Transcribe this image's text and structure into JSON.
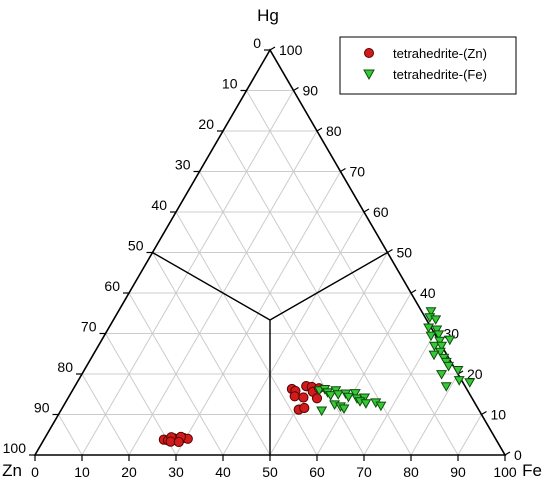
{
  "chart_data": {
    "type": "scatter",
    "subtype": "ternary",
    "apex_labels": {
      "top": "Hg",
      "left": "Zn",
      "right": "Fe"
    },
    "ticks": {
      "bottom": [
        "0",
        "10",
        "20",
        "30",
        "40",
        "50",
        "60",
        "70",
        "80",
        "90",
        "100"
      ],
      "left": [
        "0",
        "10",
        "20",
        "30",
        "40",
        "50",
        "60",
        "70",
        "80",
        "90",
        "100"
      ],
      "right": [
        "0",
        "10",
        "20",
        "30",
        "40",
        "50",
        "60",
        "70",
        "80",
        "90",
        "100"
      ]
    },
    "grid": true,
    "legend": {
      "position": "top-right"
    },
    "colors": {
      "zn_fill": "#d01c1c",
      "fe_fill": "#37c837",
      "grid": "#cccccc"
    },
    "field_boundaries": "50 % lines meeting at the centroid",
    "series": [
      {
        "name": "tetrahedrite-(Zn)",
        "marker": "circle",
        "color": "#d01c1c",
        "points_fe_hg": [
          [
            25.5,
            3.8
          ],
          [
            26.5,
            3.6
          ],
          [
            27.5,
            4.1
          ],
          [
            28.5,
            3.7
          ],
          [
            29.5,
            4.2
          ],
          [
            30.5,
            4.0
          ],
          [
            26.8,
            4.4
          ],
          [
            28.8,
            4.5
          ],
          [
            27.2,
            3.3
          ],
          [
            29.0,
            3.2
          ],
          [
            46.5,
            16.3
          ],
          [
            47.5,
            15.8
          ],
          [
            48.0,
            14.5
          ],
          [
            49.2,
            17.0
          ],
          [
            50.5,
            16.8
          ],
          [
            51.3,
            15.6
          ],
          [
            52.2,
            16.5
          ],
          [
            50.0,
            14.2
          ],
          [
            53.0,
            14.0
          ],
          [
            50.5,
            11.2
          ],
          [
            51.5,
            11.6
          ]
        ]
      },
      {
        "name": "tetrahedrite-(Fe)",
        "marker": "triangle-down",
        "color": "#37c837",
        "points_fe_hg": [
          [
            52.5,
            16.0
          ],
          [
            53.5,
            16.3
          ],
          [
            54.5,
            15.5
          ],
          [
            56.0,
            16.0
          ],
          [
            55.5,
            14.8
          ],
          [
            57.0,
            15.0
          ],
          [
            58.5,
            15.2
          ],
          [
            59.5,
            14.4
          ],
          [
            60.5,
            15.3
          ],
          [
            61.5,
            14.0
          ],
          [
            63.0,
            14.2
          ],
          [
            62.5,
            13.3
          ],
          [
            64.0,
            12.8
          ],
          [
            66.0,
            13.0
          ],
          [
            67.5,
            12.2
          ],
          [
            57.5,
            12.5
          ],
          [
            59.0,
            12.0
          ],
          [
            60.0,
            11.5
          ],
          [
            55.5,
            11.0
          ],
          [
            66.5,
            35.5
          ],
          [
            67.0,
            34.0
          ],
          [
            68.5,
            33.5
          ],
          [
            68.0,
            31.5
          ],
          [
            70.0,
            31.0
          ],
          [
            69.5,
            29.5
          ],
          [
            71.0,
            29.8
          ],
          [
            72.0,
            28.2
          ],
          [
            71.5,
            27.0
          ],
          [
            73.0,
            27.0
          ],
          [
            73.5,
            25.5
          ],
          [
            72.5,
            24.8
          ],
          [
            75.0,
            24.0
          ],
          [
            76.0,
            23.0
          ],
          [
            77.0,
            22.0
          ],
          [
            76.5,
            20.0
          ],
          [
            79.5,
            21.0
          ],
          [
            81.0,
            18.5
          ],
          [
            79.0,
            17.0
          ],
          [
            83.5,
            18.0
          ],
          [
            74.0,
            28.5
          ]
        ]
      }
    ]
  }
}
